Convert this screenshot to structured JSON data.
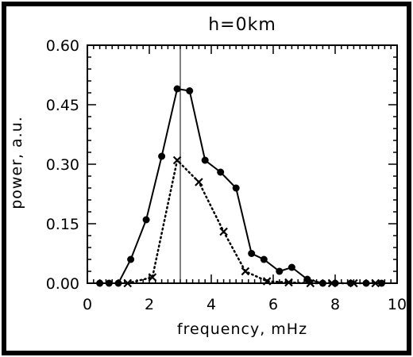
{
  "chart_data": {
    "type": "line",
    "title": "h=0km",
    "xlabel": "frequency, mHz",
    "ylabel": "power, a.u.",
    "xlim": [
      0,
      10
    ],
    "ylim": [
      0,
      0.6
    ],
    "x_ticks": [
      "0",
      "2",
      "4",
      "6",
      "8",
      "10"
    ],
    "y_ticks": [
      "0.00",
      "0.15",
      "0.30",
      "0.45",
      "0.60"
    ],
    "vertical_line_x": 3.0,
    "series": [
      {
        "marker": "filled-circle",
        "line_style": "solid",
        "x": [
          0.4,
          0.7,
          1.0,
          1.4,
          1.9,
          2.4,
          2.9,
          3.3,
          3.8,
          4.3,
          4.8,
          5.3,
          5.7,
          6.2,
          6.6,
          7.1,
          7.6,
          8.0,
          8.5,
          9.0,
          9.5
        ],
        "values": [
          0.0,
          0.0,
          0.0,
          0.06,
          0.16,
          0.32,
          0.49,
          0.485,
          0.31,
          0.28,
          0.24,
          0.075,
          0.06,
          0.03,
          0.04,
          0.01,
          0.0,
          0.0,
          0.0,
          0.0,
          0.0
        ]
      },
      {
        "marker": "x-cross",
        "line_style": "dotted",
        "x": [
          1.3,
          2.1,
          2.9,
          3.6,
          4.4,
          5.1,
          5.8,
          6.5,
          7.2,
          7.9,
          8.6,
          9.3
        ],
        "values": [
          0.0,
          0.015,
          0.31,
          0.255,
          0.13,
          0.03,
          0.005,
          0.002,
          0.0,
          0.0,
          0.0,
          0.0
        ]
      }
    ]
  }
}
